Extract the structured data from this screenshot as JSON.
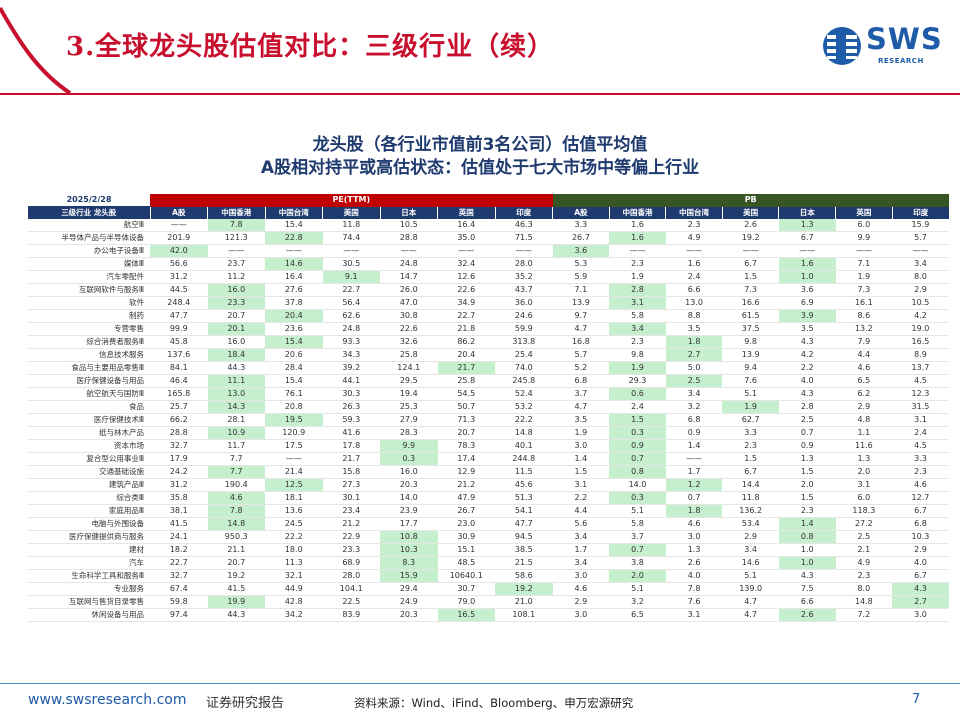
{
  "header": {
    "title": "3.全球龙头股估值对比：三级行业（续）",
    "logo_text": "SWS",
    "logo_sub": "RESEARCH"
  },
  "subtitle": {
    "line1": "龙头股（各行业市值前3名公司）估值平均值",
    "line2": "A股相对持平或高估状态：估值处于七大市场中等偏上行业"
  },
  "table": {
    "date": "2025/2/28",
    "pe_label": "PE(TTM)",
    "pb_label": "PB",
    "first_col_header": "三级行业 龙头股",
    "markets": [
      "A股",
      "中国香港",
      "中国台湾",
      "美国",
      "日本",
      "英国",
      "印度"
    ],
    "rows": [
      {
        "name": "航空Ⅲ",
        "pe": [
          "——",
          "7.8",
          "15.4",
          "11.8",
          "10.5",
          "16.4",
          "46.3"
        ],
        "pb": [
          "3.3",
          "1.6",
          "2.3",
          "2.6",
          "1.3",
          "6.0",
          "15.9"
        ],
        "pe_hl": [
          1
        ],
        "pb_hl": [
          4
        ]
      },
      {
        "name": "半导体产品与半导体设备",
        "pe": [
          "201.9",
          "121.3",
          "22.8",
          "74.4",
          "28.8",
          "35.0",
          "71.5"
        ],
        "pb": [
          "26.7",
          "1.6",
          "4.9",
          "19.2",
          "6.7",
          "9.9",
          "5.7"
        ],
        "pe_hl": [
          2
        ],
        "pb_hl": [
          1
        ]
      },
      {
        "name": "办公电子设备Ⅲ",
        "pe": [
          "42.0",
          "——",
          "——",
          "——",
          "——",
          "——",
          "——"
        ],
        "pb": [
          "3.6",
          "——",
          "——",
          "——",
          "——",
          "——",
          "——"
        ],
        "pe_hl": [
          0
        ],
        "pb_hl": [
          0
        ]
      },
      {
        "name": "媒体Ⅲ",
        "pe": [
          "56.6",
          "23.7",
          "14.6",
          "30.5",
          "24.8",
          "32.4",
          "28.0"
        ],
        "pb": [
          "5.3",
          "2.3",
          "1.6",
          "6.7",
          "1.6",
          "7.1",
          "3.4"
        ],
        "pe_hl": [
          2
        ],
        "pb_hl": [
          4
        ]
      },
      {
        "name": "汽车零配件",
        "pe": [
          "31.2",
          "11.2",
          "16.4",
          "9.1",
          "14.7",
          "12.6",
          "35.2"
        ],
        "pb": [
          "5.9",
          "1.9",
          "2.4",
          "1.5",
          "1.0",
          "1.9",
          "8.0"
        ],
        "pe_hl": [
          3
        ],
        "pb_hl": [
          4
        ]
      },
      {
        "name": "互联网软件与服务Ⅲ",
        "pe": [
          "44.5",
          "16.0",
          "27.6",
          "22.7",
          "26.0",
          "22.6",
          "43.7"
        ],
        "pb": [
          "7.1",
          "2.8",
          "6.6",
          "7.3",
          "3.6",
          "7.3",
          "2.9"
        ],
        "pe_hl": [
          1
        ],
        "pb_hl": [
          1
        ]
      },
      {
        "name": "软件",
        "pe": [
          "248.4",
          "23.3",
          "37.8",
          "56.4",
          "47.0",
          "34.9",
          "36.0"
        ],
        "pb": [
          "13.9",
          "3.1",
          "13.0",
          "16.6",
          "6.9",
          "16.1",
          "10.5"
        ],
        "pe_hl": [
          1
        ],
        "pb_hl": [
          1
        ]
      },
      {
        "name": "制药",
        "pe": [
          "47.7",
          "20.7",
          "20.4",
          "62.6",
          "30.8",
          "22.7",
          "24.6"
        ],
        "pb": [
          "9.7",
          "5.8",
          "8.8",
          "61.5",
          "3.9",
          "8.6",
          "4.2"
        ],
        "pe_hl": [
          2
        ],
        "pb_hl": [
          4
        ]
      },
      {
        "name": "专营零售",
        "pe": [
          "99.9",
          "20.1",
          "23.6",
          "24.8",
          "22.6",
          "21.8",
          "59.9"
        ],
        "pb": [
          "4.7",
          "3.4",
          "3.5",
          "37.5",
          "3.5",
          "13.2",
          "19.0"
        ],
        "pe_hl": [
          1
        ],
        "pb_hl": [
          1
        ]
      },
      {
        "name": "综合消费者服务Ⅲ",
        "pe": [
          "45.8",
          "16.0",
          "15.4",
          "93.3",
          "32.6",
          "86.2",
          "313.8"
        ],
        "pb": [
          "16.8",
          "2.3",
          "1.8",
          "9.8",
          "4.3",
          "7.9",
          "16.5"
        ],
        "pe_hl": [
          2
        ],
        "pb_hl": [
          2
        ]
      },
      {
        "name": "信息技术服务",
        "pe": [
          "137.6",
          "18.4",
          "20.6",
          "34.3",
          "25.8",
          "20.4",
          "25.4"
        ],
        "pb": [
          "5.7",
          "9.8",
          "2.7",
          "13.9",
          "4.2",
          "4.4",
          "8.9"
        ],
        "pe_hl": [
          1
        ],
        "pb_hl": [
          2
        ]
      },
      {
        "name": "食品与主要用品零售Ⅲ",
        "pe": [
          "84.1",
          "44.3",
          "28.4",
          "39.2",
          "124.1",
          "21.7",
          "74.0"
        ],
        "pb": [
          "5.2",
          "1.9",
          "5.0",
          "9.4",
          "2.2",
          "4.6",
          "13.7"
        ],
        "pe_hl": [
          5
        ],
        "pb_hl": [
          1
        ]
      },
      {
        "name": "医疗保健设备与用品",
        "pe": [
          "46.4",
          "11.1",
          "15.4",
          "44.1",
          "29.5",
          "25.8",
          "245.8"
        ],
        "pb": [
          "6.8",
          "29.3",
          "2.5",
          "7.6",
          "4.0",
          "6.5",
          "4.5"
        ],
        "pe_hl": [
          1
        ],
        "pb_hl": [
          2
        ]
      },
      {
        "name": "航空航天与国防Ⅲ",
        "pe": [
          "165.8",
          "13.0",
          "76.1",
          "30.3",
          "19.4",
          "54.5",
          "52.4"
        ],
        "pb": [
          "3.7",
          "0.6",
          "3.4",
          "5.1",
          "4.3",
          "6.2",
          "12.3"
        ],
        "pe_hl": [
          1
        ],
        "pb_hl": [
          1
        ]
      },
      {
        "name": "食品",
        "pe": [
          "25.7",
          "14.3",
          "20.8",
          "26.3",
          "25.3",
          "50.7",
          "53.2"
        ],
        "pb": [
          "4.7",
          "2.4",
          "3.2",
          "1.9",
          "2.8",
          "2.9",
          "31.5"
        ],
        "pe_hl": [
          1
        ],
        "pb_hl": [
          3
        ]
      },
      {
        "name": "医疗保健技术Ⅲ",
        "pe": [
          "66.2",
          "28.1",
          "19.5",
          "59.3",
          "27.9",
          "71.3",
          "22.2"
        ],
        "pb": [
          "3.5",
          "1.5",
          "6.8",
          "62.7",
          "2.5",
          "4.8",
          "3.1"
        ],
        "pe_hl": [
          2
        ],
        "pb_hl": [
          1
        ]
      },
      {
        "name": "纸与林木产品",
        "pe": [
          "28.8",
          "10.9",
          "120.9",
          "41.6",
          "28.3",
          "20.7",
          "14.8"
        ],
        "pb": [
          "1.9",
          "0.3",
          "0.9",
          "3.3",
          "0.7",
          "1.1",
          "2.4"
        ],
        "pe_hl": [
          1
        ],
        "pb_hl": [
          1
        ]
      },
      {
        "name": "资本市场",
        "pe": [
          "32.7",
          "11.7",
          "17.5",
          "17.8",
          "9.9",
          "78.3",
          "40.1"
        ],
        "pb": [
          "3.0",
          "0.9",
          "1.4",
          "2.3",
          "0.9",
          "11.6",
          "4.5"
        ],
        "pe_hl": [
          4
        ],
        "pb_hl": [
          1
        ]
      },
      {
        "name": "复合型公用事业Ⅲ",
        "pe": [
          "17.9",
          "7.7",
          "——",
          "21.7",
          "0.3",
          "17.4",
          "244.8"
        ],
        "pb": [
          "1.4",
          "0.7",
          "——",
          "1.5",
          "1.3",
          "1.3",
          "3.3"
        ],
        "pe_hl": [
          4
        ],
        "pb_hl": [
          1
        ]
      },
      {
        "name": "交通基础设施",
        "pe": [
          "24.2",
          "7.7",
          "21.4",
          "15.8",
          "16.0",
          "12.9",
          "11.5"
        ],
        "pb": [
          "1.5",
          "0.8",
          "1.7",
          "6.7",
          "1.5",
          "2.0",
          "2.3"
        ],
        "pe_hl": [
          1
        ],
        "pb_hl": [
          1
        ]
      },
      {
        "name": "建筑产品Ⅲ",
        "pe": [
          "31.2",
          "190.4",
          "12.5",
          "27.3",
          "20.3",
          "21.2",
          "45.6"
        ],
        "pb": [
          "3.1",
          "14.0",
          "1.2",
          "14.4",
          "2.0",
          "3.1",
          "4.6"
        ],
        "pe_hl": [
          2
        ],
        "pb_hl": [
          2
        ]
      },
      {
        "name": "综合类Ⅲ",
        "pe": [
          "35.8",
          "4.6",
          "18.1",
          "30.1",
          "14.0",
          "47.9",
          "51.3"
        ],
        "pb": [
          "2.2",
          "0.3",
          "0.7",
          "11.8",
          "1.5",
          "6.0",
          "12.7"
        ],
        "pe_hl": [
          1
        ],
        "pb_hl": [
          1
        ]
      },
      {
        "name": "家庭用品Ⅲ",
        "pe": [
          "38.1",
          "7.8",
          "13.6",
          "23.4",
          "23.9",
          "26.7",
          "54.1"
        ],
        "pb": [
          "4.4",
          "5.1",
          "1.8",
          "136.2",
          "2.3",
          "118.3",
          "6.7"
        ],
        "pe_hl": [
          1
        ],
        "pb_hl": [
          2
        ]
      },
      {
        "name": "电脑与外围设备",
        "pe": [
          "41.5",
          "14.8",
          "24.5",
          "21.2",
          "17.7",
          "23.0",
          "47.7"
        ],
        "pb": [
          "5.6",
          "5.8",
          "4.6",
          "53.4",
          "1.4",
          "27.2",
          "6.8"
        ],
        "pe_hl": [
          1
        ],
        "pb_hl": [
          4
        ]
      },
      {
        "name": "医疗保健提供商与服务",
        "pe": [
          "24.1",
          "950.3",
          "22.2",
          "22.9",
          "10.8",
          "30.9",
          "94.5"
        ],
        "pb": [
          "3.4",
          "3.7",
          "3.0",
          "2.9",
          "0.8",
          "2.5",
          "10.3"
        ],
        "pe_hl": [
          4
        ],
        "pb_hl": [
          4
        ]
      },
      {
        "name": "建材",
        "pe": [
          "18.2",
          "21.1",
          "18.0",
          "23.3",
          "10.3",
          "15.1",
          "38.5"
        ],
        "pb": [
          "1.7",
          "0.7",
          "1.3",
          "3.4",
          "1.0",
          "2.1",
          "2.9"
        ],
        "pe_hl": [
          4
        ],
        "pb_hl": [
          1
        ]
      },
      {
        "name": "汽车",
        "pe": [
          "22.7",
          "20.7",
          "11.3",
          "68.9",
          "8.3",
          "48.5",
          "21.5"
        ],
        "pb": [
          "3.4",
          "3.8",
          "2.6",
          "14.6",
          "1.0",
          "4.9",
          "4.0"
        ],
        "pe_hl": [
          4
        ],
        "pb_hl": [
          4
        ]
      },
      {
        "name": "生命科学工具和服务Ⅲ",
        "pe": [
          "32.7",
          "19.2",
          "32.1",
          "28.0",
          "15.9",
          "10640.1",
          "58.6"
        ],
        "pb": [
          "3.0",
          "2.0",
          "4.0",
          "5.1",
          "4.3",
          "2.3",
          "6.7"
        ],
        "pe_hl": [
          4
        ],
        "pb_hl": [
          1
        ]
      },
      {
        "name": "专业服务",
        "pe": [
          "67.4",
          "41.5",
          "44.9",
          "104.1",
          "29.4",
          "30.7",
          "19.2"
        ],
        "pb": [
          "4.6",
          "5.1",
          "7.8",
          "139.0",
          "7.5",
          "8.0",
          "4.3"
        ],
        "pe_hl": [
          6
        ],
        "pb_hl": [
          6
        ]
      },
      {
        "name": "互联网与售货目录零售",
        "pe": [
          "59.8",
          "19.9",
          "42.8",
          "22.5",
          "24.9",
          "79.0",
          "21.0"
        ],
        "pb": [
          "2.9",
          "3.2",
          "7.6",
          "4.7",
          "6.6",
          "14.8",
          "2.7"
        ],
        "pe_hl": [
          1
        ],
        "pb_hl": [
          6
        ]
      },
      {
        "name": "休闲设备与用品",
        "pe": [
          "97.4",
          "44.3",
          "34.2",
          "83.9",
          "20.3",
          "16.5",
          "108.1"
        ],
        "pb": [
          "3.0",
          "6.5",
          "3.1",
          "4.7",
          "2.6",
          "7.2",
          "3.0"
        ],
        "pe_hl": [
          5
        ],
        "pb_hl": [
          4
        ]
      }
    ]
  },
  "footer": {
    "url": "www.swsresearch.com",
    "label": "证券研究报告",
    "source": "资料来源：Wind、iFind、Bloomberg、申万宏源研究",
    "page": "7"
  },
  "colors": {
    "brand_red": "#C8102E",
    "brand_blue": "#1E5BA8",
    "navy": "#1F3A6E",
    "pe_header": "#C00000",
    "pb_header": "#375623",
    "highlight": "#C6EFCE"
  }
}
